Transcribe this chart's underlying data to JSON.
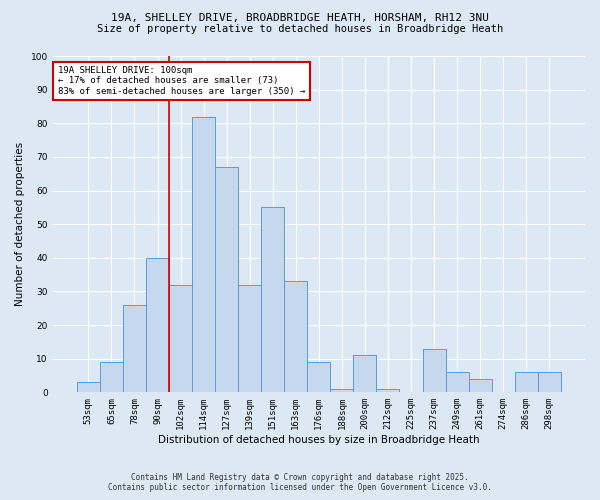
{
  "title1": "19A, SHELLEY DRIVE, BROADBRIDGE HEATH, HORSHAM, RH12 3NU",
  "title2": "Size of property relative to detached houses in Broadbridge Heath",
  "xlabel": "Distribution of detached houses by size in Broadbridge Heath",
  "ylabel": "Number of detached properties",
  "categories": [
    "53sqm",
    "65sqm",
    "78sqm",
    "90sqm",
    "102sqm",
    "114sqm",
    "127sqm",
    "139sqm",
    "151sqm",
    "163sqm",
    "176sqm",
    "188sqm",
    "200sqm",
    "212sqm",
    "225sqm",
    "237sqm",
    "249sqm",
    "261sqm",
    "274sqm",
    "286sqm",
    "298sqm"
  ],
  "values": [
    3,
    9,
    26,
    40,
    32,
    82,
    67,
    32,
    55,
    33,
    9,
    1,
    11,
    1,
    0,
    13,
    6,
    4,
    0,
    6,
    6
  ],
  "bar_color": "#c5d8ed",
  "bar_edge_color": "#5b9bd5",
  "vline_color": "#cc0000",
  "annotation_line1": "19A SHELLEY DRIVE: 100sqm",
  "annotation_line2": "← 17% of detached houses are smaller (73)",
  "annotation_line3": "83% of semi-detached houses are larger (350) →",
  "annotation_box_color": "#ffffff",
  "annotation_box_edge_color": "#cc0000",
  "background_color": "#dce9f5",
  "plot_bg_color": "#dce9f5",
  "ylim": [
    0,
    100
  ],
  "footnote1": "Contains HM Land Registry data © Crown copyright and database right 2025.",
  "footnote2": "Contains public sector information licensed under the Open Government Licence v3.0."
}
